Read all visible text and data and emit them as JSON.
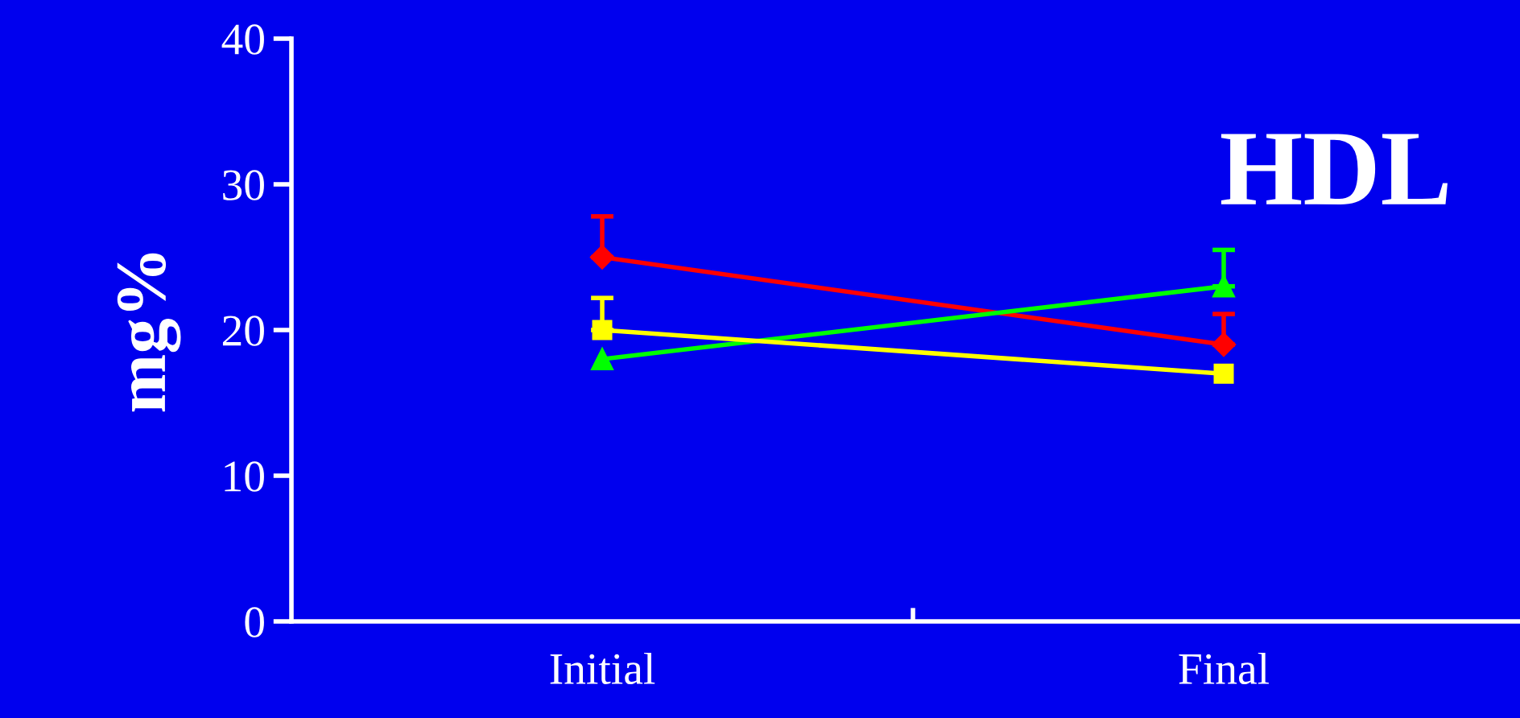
{
  "chart_data": {
    "type": "line",
    "title": "HDL",
    "ylabel": "mg%",
    "categories": [
      "Initial",
      "Final"
    ],
    "series": [
      {
        "color": "#ff0000",
        "values": [
          25,
          19
        ],
        "marker": "diamond",
        "errors": [
          [
            25,
            27.8
          ],
          [
            19,
            21.1
          ]
        ]
      },
      {
        "color": "#00ff00",
        "values": [
          18,
          23
        ],
        "marker": "triangle",
        "errors": [
          null,
          [
            23,
            25.5
          ]
        ]
      },
      {
        "color": "#ffff00",
        "values": [
          20,
          17
        ],
        "marker": "square",
        "errors": [
          [
            20,
            22.2
          ],
          null
        ]
      }
    ],
    "ylim": [
      0,
      40
    ],
    "yticks": [
      0,
      10,
      20,
      30,
      40
    ],
    "grid": false,
    "legend": false
  }
}
